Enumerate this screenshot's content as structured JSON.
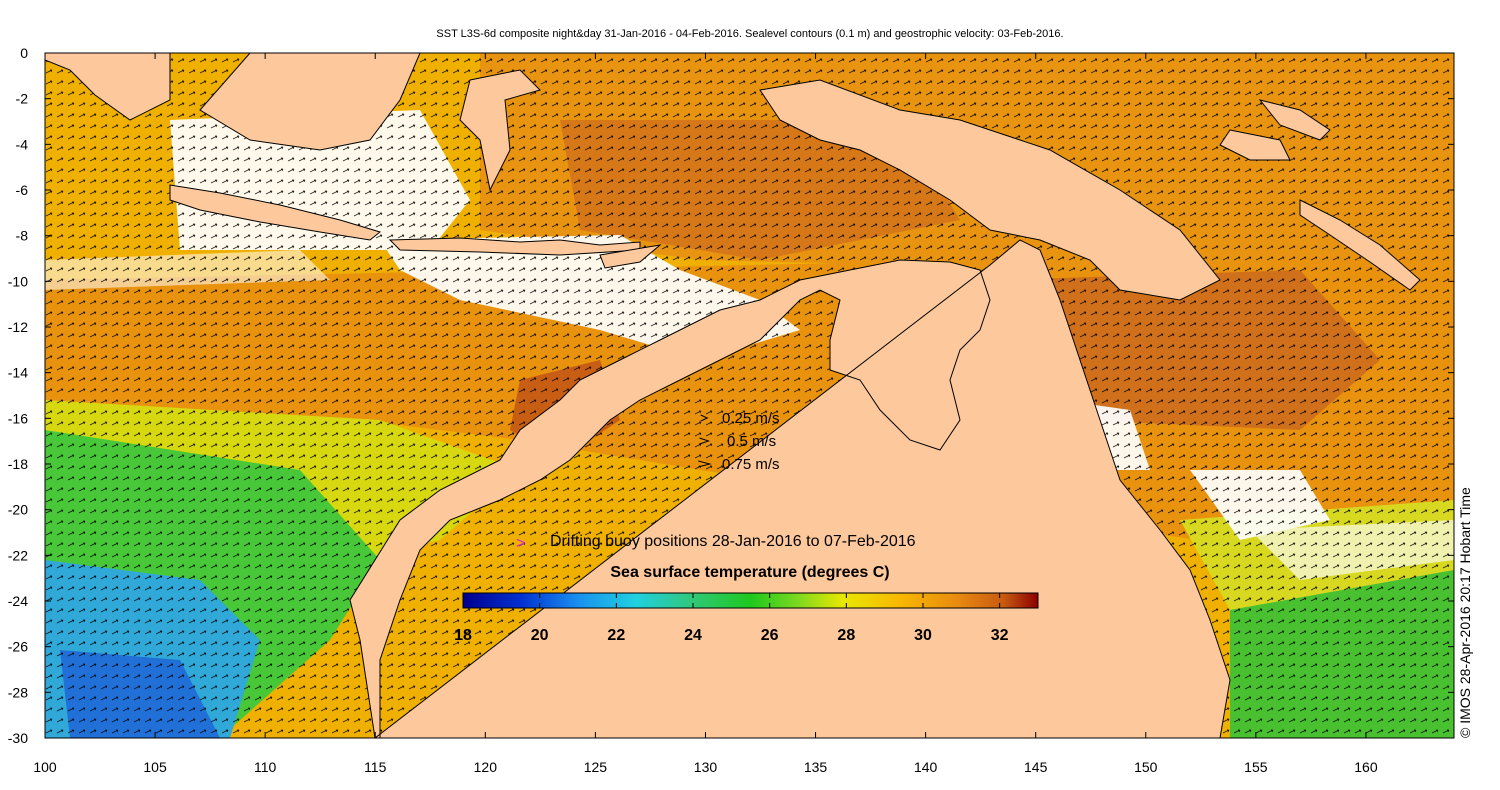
{
  "title": "SST L3S-6d composite night&day 31-Jan-2016 - 04-Feb-2016. Sealevel contours (0.1 m) and geostrophic velocity: 03-Feb-2016.",
  "credit": "© IMOS 28-Apr-2016 20:17 Hobart Time",
  "x_axis": {
    "ticks": [
      "100",
      "105",
      "110",
      "115",
      "120",
      "125",
      "130",
      "135",
      "140",
      "145",
      "150",
      "155",
      "160"
    ],
    "range": [
      100,
      164
    ]
  },
  "y_axis": {
    "ticks": [
      "0",
      "-2",
      "-4",
      "-6",
      "-8",
      "-10",
      "-12",
      "-14",
      "-16",
      "-18",
      "-20",
      "-22",
      "-24",
      "-26",
      "-28",
      "-30"
    ],
    "range": [
      -30,
      0
    ]
  },
  "velocity_legend": [
    {
      "label": "0.25 m/s",
      "speed": 0.25
    },
    {
      "label": "0.5 m/s",
      "speed": 0.5
    },
    {
      "label": "0.75 m/s",
      "speed": 0.75
    }
  ],
  "buoy_legend": {
    "symbol": ">",
    "text": "Drifting buoy positions 28-Jan-2016 to 07-Feb-2016",
    "color": "#e020e0"
  },
  "colorbar": {
    "title": "Sea surface temperature (degrees C)",
    "ticks": [
      "18",
      "20",
      "22",
      "24",
      "26",
      "28",
      "30",
      "32"
    ],
    "range": [
      18,
      33
    ]
  },
  "colors": {
    "land": "#fdc89c",
    "cloud": "#ffffff",
    "sst_warm": "#e8900c",
    "sst_hot": "#cd6a10",
    "sst_mild": "#f0b200",
    "sst_green": "#4fcf30",
    "sst_cool": "#1aa4e0"
  }
}
